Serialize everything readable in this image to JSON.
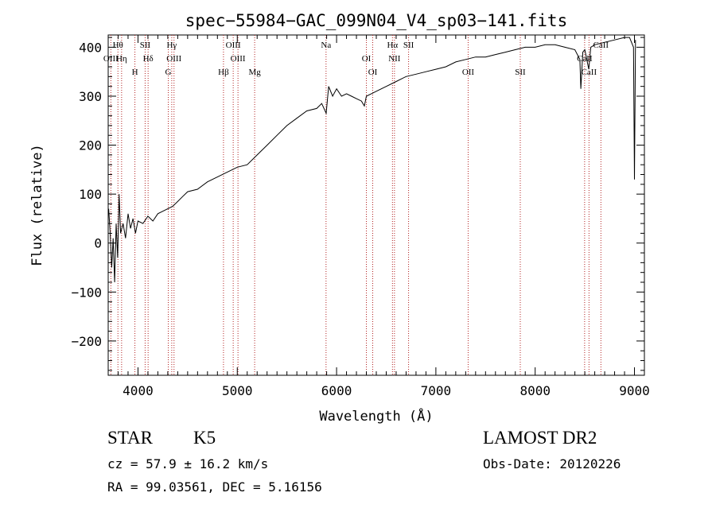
{
  "chart_data": {
    "type": "line",
    "title": "spec−55984−GAC_099N04_V4_sp03−141.fits",
    "xlabel": "Wavelength (Å)",
    "ylabel": "Flux (relative)",
    "xlim": [
      3700,
      9100
    ],
    "ylim": [
      -270,
      425
    ],
    "xticks": [
      4000,
      5000,
      6000,
      7000,
      8000,
      9000
    ],
    "xtick_labels": [
      "4000",
      "5000",
      "6000",
      "7000",
      "8000",
      "9000"
    ],
    "yticks": [
      -200,
      -100,
      0,
      100,
      200,
      300,
      400
    ],
    "ytick_labels": [
      "−200",
      "−100",
      "0",
      "100",
      "200",
      "300",
      "400"
    ],
    "grid": false,
    "series": [
      {
        "x": [
          3705,
          3720,
          3735,
          3750,
          3765,
          3780,
          3795,
          3810,
          3825,
          3850,
          3875,
          3900,
          3925,
          3950,
          3975,
          4000,
          4050,
          4100,
          4150,
          4200,
          4250,
          4300,
          4350,
          4400,
          4450,
          4500,
          4600,
          4700,
          4800,
          4900,
          5000,
          5100,
          5200,
          5300,
          5400,
          5500,
          5600,
          5700,
          5800,
          5850,
          5895,
          5920,
          5960,
          6000,
          6050,
          6100,
          6150,
          6200,
          6250,
          6280,
          6300,
          6350,
          6400,
          6500,
          6600,
          6700,
          6800,
          6900,
          7000,
          7100,
          7200,
          7300,
          7400,
          7500,
          7600,
          7700,
          7800,
          7900,
          8000,
          8100,
          8200,
          8300,
          8400,
          8450,
          8460,
          8480,
          8500,
          8540,
          8560,
          8600,
          8700,
          8800,
          8900,
          8950,
          8990,
          9000,
          9010
        ],
        "y": [
          70,
          20,
          -50,
          10,
          -80,
          40,
          -30,
          100,
          20,
          40,
          10,
          60,
          30,
          50,
          20,
          45,
          40,
          55,
          45,
          60,
          65,
          70,
          75,
          85,
          95,
          105,
          110,
          125,
          135,
          145,
          155,
          160,
          180,
          200,
          220,
          240,
          255,
          270,
          275,
          285,
          265,
          320,
          300,
          315,
          300,
          305,
          300,
          295,
          290,
          280,
          300,
          305,
          310,
          320,
          330,
          340,
          345,
          350,
          355,
          360,
          370,
          375,
          380,
          380,
          385,
          390,
          395,
          400,
          400,
          405,
          405,
          400,
          395,
          375,
          315,
          390,
          395,
          355,
          400,
          405,
          410,
          415,
          420,
          420,
          400,
          130,
          415
        ]
      }
    ],
    "lines": [
      {
        "label": "Hθ",
        "x": 3798,
        "row": 0
      },
      {
        "label": "OIII",
        "x": 3727,
        "row": 1
      },
      {
        "label": "Hη",
        "x": 3835,
        "row": 1
      },
      {
        "label": "H",
        "x": 3969,
        "row": 2
      },
      {
        "label": "SII",
        "x": 4072,
        "row": 0
      },
      {
        "label": "Hδ",
        "x": 4102,
        "row": 1
      },
      {
        "label": "Hγ",
        "x": 4340,
        "row": 0
      },
      {
        "label": "G",
        "x": 4305,
        "row": 2
      },
      {
        "label": "OIII",
        "x": 4363,
        "row": 1
      },
      {
        "label": "Hβ",
        "x": 4861,
        "row": 2
      },
      {
        "label": "OIII",
        "x": 4959,
        "row": 0
      },
      {
        "label": "OIII",
        "x": 5007,
        "row": 1
      },
      {
        "label": "Mg",
        "x": 5175,
        "row": 2
      },
      {
        "label": "Na",
        "x": 5894,
        "row": 0
      },
      {
        "label": "OI",
        "x": 6300,
        "row": 1
      },
      {
        "label": "OI",
        "x": 6364,
        "row": 2
      },
      {
        "label": "Hα",
        "x": 6563,
        "row": 0
      },
      {
        "label": "NII",
        "x": 6583,
        "row": 1
      },
      {
        "label": "SII",
        "x": 6725,
        "row": 0
      },
      {
        "label": "OII",
        "x": 7325,
        "row": 2
      },
      {
        "label": "SII",
        "x": 7850,
        "row": 2
      },
      {
        "label": "CaII",
        "x": 8498,
        "row": 1
      },
      {
        "label": "CaII",
        "x": 8542,
        "row": 2
      },
      {
        "label": "CaII",
        "x": 8662,
        "row": 0
      }
    ]
  },
  "info": {
    "object_class": "STAR",
    "subclass": "K5",
    "survey": "LAMOST DR2",
    "cz": "cz = 57.9 ± 16.2 km/s",
    "obs_date": "Obs-Date: 20120226",
    "coords": "RA =  99.03561, DEC =   5.16156"
  }
}
